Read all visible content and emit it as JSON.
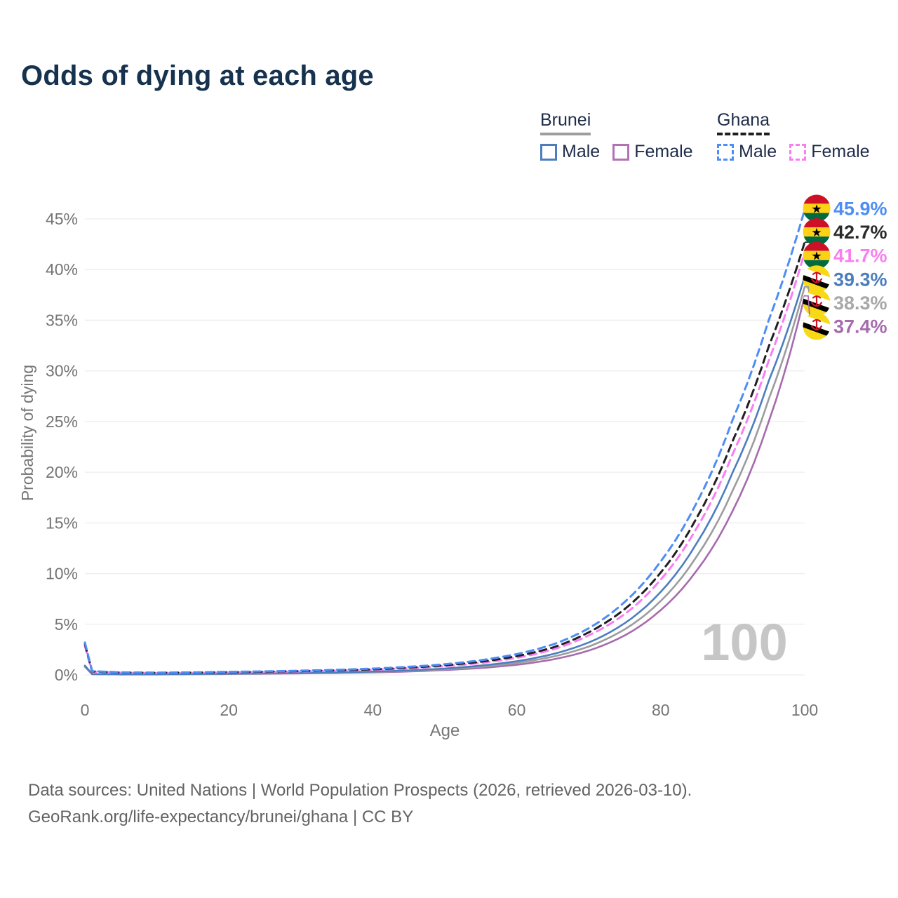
{
  "title": "Odds of dying at each age",
  "legend": {
    "groups": [
      {
        "label": "Brunei",
        "underline": {
          "style": "solid",
          "color": "#9e9e9e"
        },
        "entries": [
          {
            "label": "Male",
            "color": "#4c7ebe",
            "dashed": false
          },
          {
            "label": "Female",
            "color": "#b172b6",
            "dashed": false
          }
        ]
      },
      {
        "label": "Ghana",
        "underline": {
          "style": "dashed",
          "color": "#1f1f1f"
        },
        "entries": [
          {
            "label": "Male",
            "color": "#4d8df6",
            "dashed": true
          },
          {
            "label": "Female",
            "color": "#fa7df2",
            "dashed": true
          }
        ]
      }
    ]
  },
  "chart_data": {
    "type": "line",
    "title": "Odds of dying at each age",
    "xlabel": "Age",
    "ylabel": "Probability of dying",
    "xlim": [
      0,
      100
    ],
    "ylim": [
      0,
      46
    ],
    "grid": true,
    "legend_position": "top-right",
    "watermark": "100",
    "xtick_values": [
      0,
      20,
      40,
      60,
      80,
      100
    ],
    "xtick_labels": [
      "0",
      "20",
      "40",
      "60",
      "80",
      "100"
    ],
    "ytick_values": [
      0,
      5,
      10,
      15,
      20,
      25,
      30,
      35,
      40,
      45
    ],
    "ytick_labels": [
      "0%",
      "5%",
      "10%",
      "15%",
      "20%",
      "25%",
      "30%",
      "35%",
      "40%",
      "45%"
    ],
    "x": [
      0,
      1,
      5,
      10,
      15,
      20,
      25,
      30,
      35,
      40,
      45,
      50,
      55,
      60,
      65,
      70,
      75,
      80,
      85,
      90,
      95,
      100
    ],
    "unit": "percent",
    "series": [
      {
        "id": "ghana-male",
        "country": "Ghana",
        "group": "male",
        "flag": "ghana",
        "color": "#4d8df6",
        "dashed": true,
        "end_label": "45.9%",
        "label_color": "#4d8df6",
        "values": [
          3.2,
          0.38,
          0.25,
          0.22,
          0.25,
          0.3,
          0.35,
          0.42,
          0.5,
          0.62,
          0.8,
          1.05,
          1.45,
          2.05,
          3.0,
          4.6,
          7.2,
          11.2,
          17.0,
          25.2,
          35.0,
          45.9
        ]
      },
      {
        "id": "ghana",
        "country": "Ghana",
        "group": "country",
        "flag": "ghana",
        "color": "#202020",
        "dashed": true,
        "end_label": "42.7%",
        "label_color": "#2b2b2b",
        "values": [
          3.05,
          0.35,
          0.23,
          0.21,
          0.23,
          0.27,
          0.32,
          0.38,
          0.45,
          0.55,
          0.72,
          0.95,
          1.3,
          1.85,
          2.7,
          4.2,
          6.5,
          10.1,
          15.5,
          23.1,
          32.4,
          42.7
        ]
      },
      {
        "id": "ghana-female",
        "country": "Ghana",
        "group": "female",
        "flag": "ghana",
        "color": "#fa7df2",
        "dashed": true,
        "end_label": "41.7%",
        "label_color": "#fa7df2",
        "values": [
          2.85,
          0.32,
          0.22,
          0.19,
          0.21,
          0.25,
          0.29,
          0.35,
          0.42,
          0.5,
          0.65,
          0.86,
          1.18,
          1.68,
          2.5,
          3.9,
          6.0,
          9.4,
          14.5,
          21.8,
          31.0,
          41.7
        ]
      },
      {
        "id": "brunei-male",
        "country": "Brunei",
        "group": "male",
        "flag": "brunei",
        "color": "#4c7ebe",
        "dashed": false,
        "end_label": "39.3%",
        "label_color": "#4c7ebe",
        "values": [
          0.92,
          0.09,
          0.06,
          0.06,
          0.09,
          0.13,
          0.16,
          0.2,
          0.25,
          0.33,
          0.45,
          0.63,
          0.92,
          1.35,
          2.05,
          3.2,
          5.1,
          8.2,
          13.0,
          20.0,
          29.0,
          39.3
        ]
      },
      {
        "id": "brunei",
        "country": "Brunei",
        "group": "country",
        "flag": "brunei",
        "color": "#9c9c9c",
        "dashed": false,
        "end_label": "38.3%",
        "label_color": "#a8a8a8",
        "values": [
          0.86,
          0.08,
          0.05,
          0.05,
          0.08,
          0.11,
          0.14,
          0.17,
          0.22,
          0.29,
          0.4,
          0.56,
          0.8,
          1.18,
          1.8,
          2.8,
          4.5,
          7.3,
          11.7,
          18.2,
          27.2,
          38.3
        ]
      },
      {
        "id": "brunei-female",
        "country": "Brunei",
        "group": "female",
        "flag": "brunei",
        "color": "#a66bad",
        "dashed": false,
        "end_label": "37.4%",
        "label_color": "#a66bad",
        "values": [
          0.8,
          0.07,
          0.05,
          0.05,
          0.07,
          0.09,
          0.12,
          0.15,
          0.19,
          0.25,
          0.34,
          0.48,
          0.68,
          1.0,
          1.52,
          2.4,
          3.9,
          6.4,
          10.3,
          16.2,
          25.0,
          37.4
        ]
      }
    ],
    "flag_colors": {
      "ghana": {
        "red": "#ce1126",
        "gold": "#fcd116",
        "green": "#006b3f",
        "star": "#000000"
      },
      "brunei": {
        "yellow": "#f7d917",
        "white": "#ffffff",
        "black": "#000000",
        "crest": "#cf1126"
      }
    }
  },
  "icons": {
    "ghana_flag": "ghana-flag-icon",
    "brunei_flag": "brunei-flag-icon",
    "star": "★"
  },
  "footer": {
    "line1": "Data sources: United Nations | World Population Prospects (2026, retrieved 2026-03-10).",
    "line2": "GeoRank.org/life-expectancy/brunei/ghana | CC BY"
  }
}
